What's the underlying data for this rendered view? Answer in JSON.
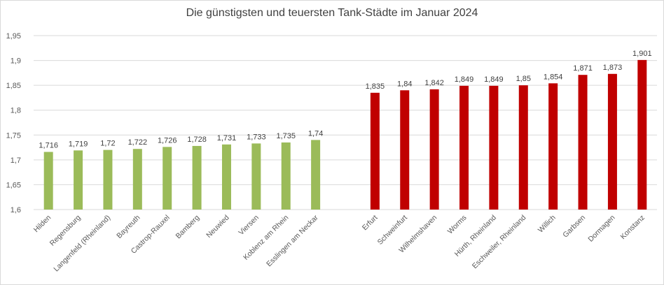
{
  "chart_data": {
    "type": "bar",
    "title": "Die günstigsten und teuersten Tank-Städte im Januar 2024",
    "xlabel": "",
    "ylabel": "",
    "ylim": [
      1.6,
      1.95
    ],
    "yticks": [
      "1,6",
      "1,65",
      "1,7",
      "1,75",
      "1,8",
      "1,85",
      "1,9",
      "1,95"
    ],
    "ytick_values": [
      1.6,
      1.65,
      1.7,
      1.75,
      1.8,
      1.85,
      1.9,
      1.95
    ],
    "grid": true,
    "legend": "none",
    "categories": [
      "Hilden",
      "Regensburg",
      "Langenfeld (Rheinland)",
      "Bayreuth",
      "Castrop-Rauxel",
      "Bamberg",
      "Neuwied",
      "Viersen",
      "Koblenz am Rhein",
      "Esslingen am Neckar",
      "",
      "Erfurt",
      "Schweinfurt",
      "Wilhelmshaven",
      "Worms",
      "Hürth, Rheinland",
      "Eschweiler, Rheinland",
      "Willich",
      "Garbsen",
      "Dormagen",
      "Konstanz"
    ],
    "values": [
      1.716,
      1.719,
      1.72,
      1.722,
      1.726,
      1.728,
      1.731,
      1.733,
      1.735,
      1.74,
      null,
      1.835,
      1.84,
      1.842,
      1.849,
      1.849,
      1.85,
      1.854,
      1.871,
      1.873,
      1.901
    ],
    "value_labels": [
      "1,716",
      "1,719",
      "1,72",
      "1,722",
      "1,726",
      "1,728",
      "1,731",
      "1,733",
      "1,735",
      "1,74",
      "",
      "1,835",
      "1,84",
      "1,842",
      "1,849",
      "1,849",
      "1,85",
      "1,854",
      "1,871",
      "1,873",
      "1,901"
    ],
    "bar_colors": [
      "#9bbb59",
      "#9bbb59",
      "#9bbb59",
      "#9bbb59",
      "#9bbb59",
      "#9bbb59",
      "#9bbb59",
      "#9bbb59",
      "#9bbb59",
      "#9bbb59",
      "",
      "#c00000",
      "#c00000",
      "#c00000",
      "#c00000",
      "#c00000",
      "#c00000",
      "#c00000",
      "#c00000",
      "#c00000",
      "#c00000"
    ],
    "colors": {
      "cheapest": "#9bbb59",
      "most_expensive": "#c00000",
      "grid": "#d9d9d9",
      "text": "#595959"
    }
  }
}
